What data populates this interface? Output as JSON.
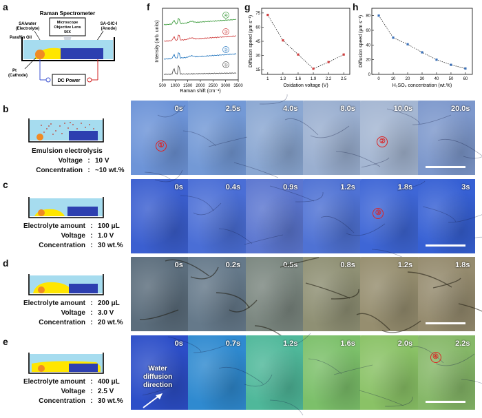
{
  "panels": {
    "a": "a",
    "b": "b",
    "c": "c",
    "d": "d",
    "e": "e",
    "f": "f",
    "g": "g",
    "h": "h"
  },
  "setup": {
    "title": "Raman Spectrometer",
    "lens_line1": "Microscope",
    "lens_line2": "Objective Lens",
    "lens_line3": "50X",
    "electrolyte_line1": "SA/water",
    "electrolyte_line2": "(Electrolyte)",
    "paraffin": "Paraffin Oil",
    "anode_line1": "SA-GIC-I",
    "anode_line2": "(Anode)",
    "cathode_line1": "Pt",
    "cathode_line2": "(Cathode)",
    "power": "DC Power"
  },
  "raman": {
    "ylabel": "Intensity (arb. units)",
    "xlabel": "Raman shift (cm⁻¹)",
    "xticks": [
      "500",
      "1000",
      "1500",
      "2000",
      "2500",
      "3000",
      "3500"
    ],
    "traces": [
      {
        "id": "④",
        "color": "#3a9a3a"
      },
      {
        "id": "③",
        "color": "#d04040"
      },
      {
        "id": "②",
        "color": "#2a7ac0"
      },
      {
        "id": "①",
        "color": "#555555"
      }
    ]
  },
  "chart_data": [
    {
      "type": "line",
      "xlabel": "Oxidation voltage (V)",
      "ylabel": "Diffusion speed (μm s⁻¹)",
      "x": [
        1.0,
        1.3,
        1.6,
        1.9,
        2.2,
        2.5
      ],
      "y": [
        73,
        46,
        31,
        16,
        23,
        31
      ],
      "xticks": [
        "1",
        "1.3",
        "1.6",
        "1.9",
        "2.2",
        "2.5"
      ],
      "yticks": [
        "15",
        "30",
        "45",
        "60",
        "75"
      ],
      "ylim": [
        10,
        80
      ],
      "color": "#d04040"
    },
    {
      "type": "line",
      "xlabel": "H₂SO₄ concentration (wt.%)",
      "ylabel": "Diffusion speed (μm s⁻¹)",
      "x": [
        0,
        10,
        20,
        30,
        40,
        50,
        60
      ],
      "y": [
        80,
        50,
        41,
        30,
        20,
        13,
        8
      ],
      "xticks": [
        "0",
        "10",
        "20",
        "30",
        "40",
        "50",
        "60"
      ],
      "yticks": [
        "0",
        "20",
        "40",
        "60",
        "80"
      ],
      "ylim": [
        0,
        90
      ],
      "color": "#3a70b8"
    }
  ],
  "rows": {
    "b": {
      "title": "Emulsion electrolysis",
      "params": [
        {
          "k": "Voltage",
          "v": "10 V"
        },
        {
          "k": "Concentration",
          "v": "~10 wt.%"
        }
      ],
      "times": [
        "0s",
        "2.5s",
        "4.0s",
        "8.0s",
        "10.0s",
        "20.0s"
      ],
      "markers": [
        "①",
        "②"
      ]
    },
    "c": {
      "params": [
        {
          "k": "Electrolyte amount",
          "v": "100 μL"
        },
        {
          "k": "Voltage",
          "v": "1.0 V"
        },
        {
          "k": "Concentration",
          "v": "30 wt.%"
        }
      ],
      "times": [
        "0s",
        "0.4s",
        "0.9s",
        "1.2s",
        "1.8s",
        "3s"
      ],
      "markers": [
        "③"
      ]
    },
    "d": {
      "params": [
        {
          "k": "Electrolyte amount",
          "v": "200 μL"
        },
        {
          "k": "Voltage",
          "v": "3.0 V"
        },
        {
          "k": "Concentration",
          "v": "20 wt.%"
        }
      ],
      "times": [
        "0s",
        "0.2s",
        "0.5s",
        "0.8s",
        "1.2s",
        "1.8s"
      ]
    },
    "e": {
      "params": [
        {
          "k": "Electrolyte amount",
          "v": "400 μL"
        },
        {
          "k": "Voltage",
          "v": "2.5 V"
        },
        {
          "k": "Concentration",
          "v": "30 wt.%"
        }
      ],
      "times": [
        "0s",
        "0.7s",
        "1.2s",
        "1.6s",
        "2.0s",
        "2.2s"
      ],
      "markers": [
        "④"
      ],
      "arrow_line1": "Water",
      "arrow_line2": "diffusion",
      "arrow_line3": "direction"
    }
  },
  "colors": {
    "electrolyte": "#ffe600",
    "paraffin": "#a6dcef",
    "anode": "#2d3fb0",
    "cathode": "#f08a24",
    "b_tint": [
      "#6d94d8",
      "#7399d6",
      "#8aa7d2",
      "#9aafd0",
      "#a4b6d2",
      "#7d98cc"
    ],
    "c_tint": [
      "#3b5fd0",
      "#4a6ed6",
      "#5b76d0",
      "#4f72d4",
      "#3e66d6",
      "#3660d4"
    ],
    "d_tint": [
      "#5b6d7c",
      "#65798a",
      "#7b8780",
      "#8f9074",
      "#968e6f",
      "#958b6e"
    ],
    "e_tint": [
      "#2c4ec8",
      "#2f8ad0",
      "#4fb89a",
      "#7cc06a",
      "#8ac266",
      "#86b868"
    ]
  }
}
